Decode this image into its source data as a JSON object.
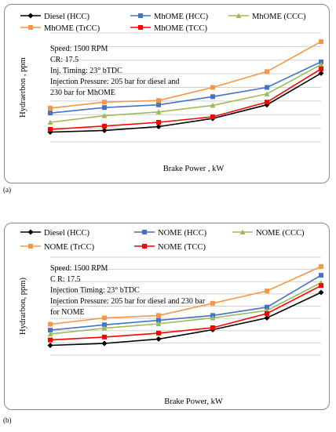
{
  "captions": {
    "a": "(a)",
    "b": "(b)"
  },
  "chart_data": [
    {
      "type": "line",
      "panel": "(a)",
      "xlabel": "Brake Power , kW",
      "ylabel": "Hydraerbon , ppm",
      "x": [
        1,
        2,
        3,
        4,
        5,
        6
      ],
      "ylim": [
        0,
        20
      ],
      "grid": true,
      "legend_position": "top",
      "annotations": [
        "Speed: 1500 RPM",
        "CR: 17.5",
        "Inj. Timing: 23° bTDC",
        "Injection Pressure: 205 bar for diesel and",
        "230 bar for MhOME"
      ],
      "series": [
        {
          "name": "Diesel (HCC)",
          "color": "#000000",
          "marker": "diamond",
          "values": [
            1.8,
            2.1,
            2.8,
            4.3,
            6.8,
            12.6
          ]
        },
        {
          "name": "MhOME (HCC)",
          "color": "#4472c4",
          "marker": "square",
          "values": [
            5.3,
            6.3,
            6.8,
            8.3,
            10.0,
            14.7
          ]
        },
        {
          "name": "MhOME  (CCC)",
          "color": "#9bbb59",
          "marker": "triangle",
          "values": [
            3.6,
            4.8,
            5.5,
            6.7,
            8.8,
            14.2
          ]
        },
        {
          "name": "MhOME (TrCC)",
          "color": "#f79646",
          "marker": "square",
          "values": [
            6.2,
            7.3,
            7.6,
            10.0,
            12.9,
            18.4
          ]
        },
        {
          "name": "MhOME (TCC)",
          "color": "#ff0000",
          "marker": "square",
          "values": [
            2.3,
            2.9,
            3.6,
            4.6,
            7.3,
            13.4
          ]
        }
      ]
    },
    {
      "type": "line",
      "panel": "(b)",
      "xlabel": "Brake Power, kW",
      "ylabel": "Hydrarbon,  ppm)",
      "x": [
        1,
        2,
        3,
        4,
        5,
        6
      ],
      "ylim": [
        0,
        20
      ],
      "grid": true,
      "legend_position": "top",
      "annotations": [
        "Speed: 1500 RPM",
        "C R: 17.5",
        "Injection Timing: 23° bTDC",
        "Injection Pressure: 205 bar for diesel and 230 bar",
        "for NOME"
      ],
      "series": [
        {
          "name": "Diesel (HCC)",
          "color": "#000000",
          "marker": "diamond",
          "values": [
            2.0,
            2.4,
            3.3,
            5.2,
            7.6,
            12.8
          ]
        },
        {
          "name": "NOME (HCC)",
          "color": "#4472c4",
          "marker": "square",
          "values": [
            5.1,
            6.2,
            7.1,
            8.1,
            9.8,
            16.3
          ]
        },
        {
          "name": "NOME  (CCC)",
          "color": "#9bbb59",
          "marker": "triangle",
          "values": [
            4.3,
            5.5,
            6.4,
            7.6,
            9.1,
            14.8
          ]
        },
        {
          "name": "NOME (TrCC)",
          "color": "#f79646",
          "marker": "square",
          "values": [
            6.3,
            7.6,
            8.1,
            10.6,
            13.1,
            18.1
          ]
        },
        {
          "name": "NOME (TCC)",
          "color": "#ff0000",
          "marker": "square",
          "values": [
            3.1,
            3.7,
            4.5,
            5.6,
            8.5,
            14.2
          ]
        }
      ]
    }
  ]
}
